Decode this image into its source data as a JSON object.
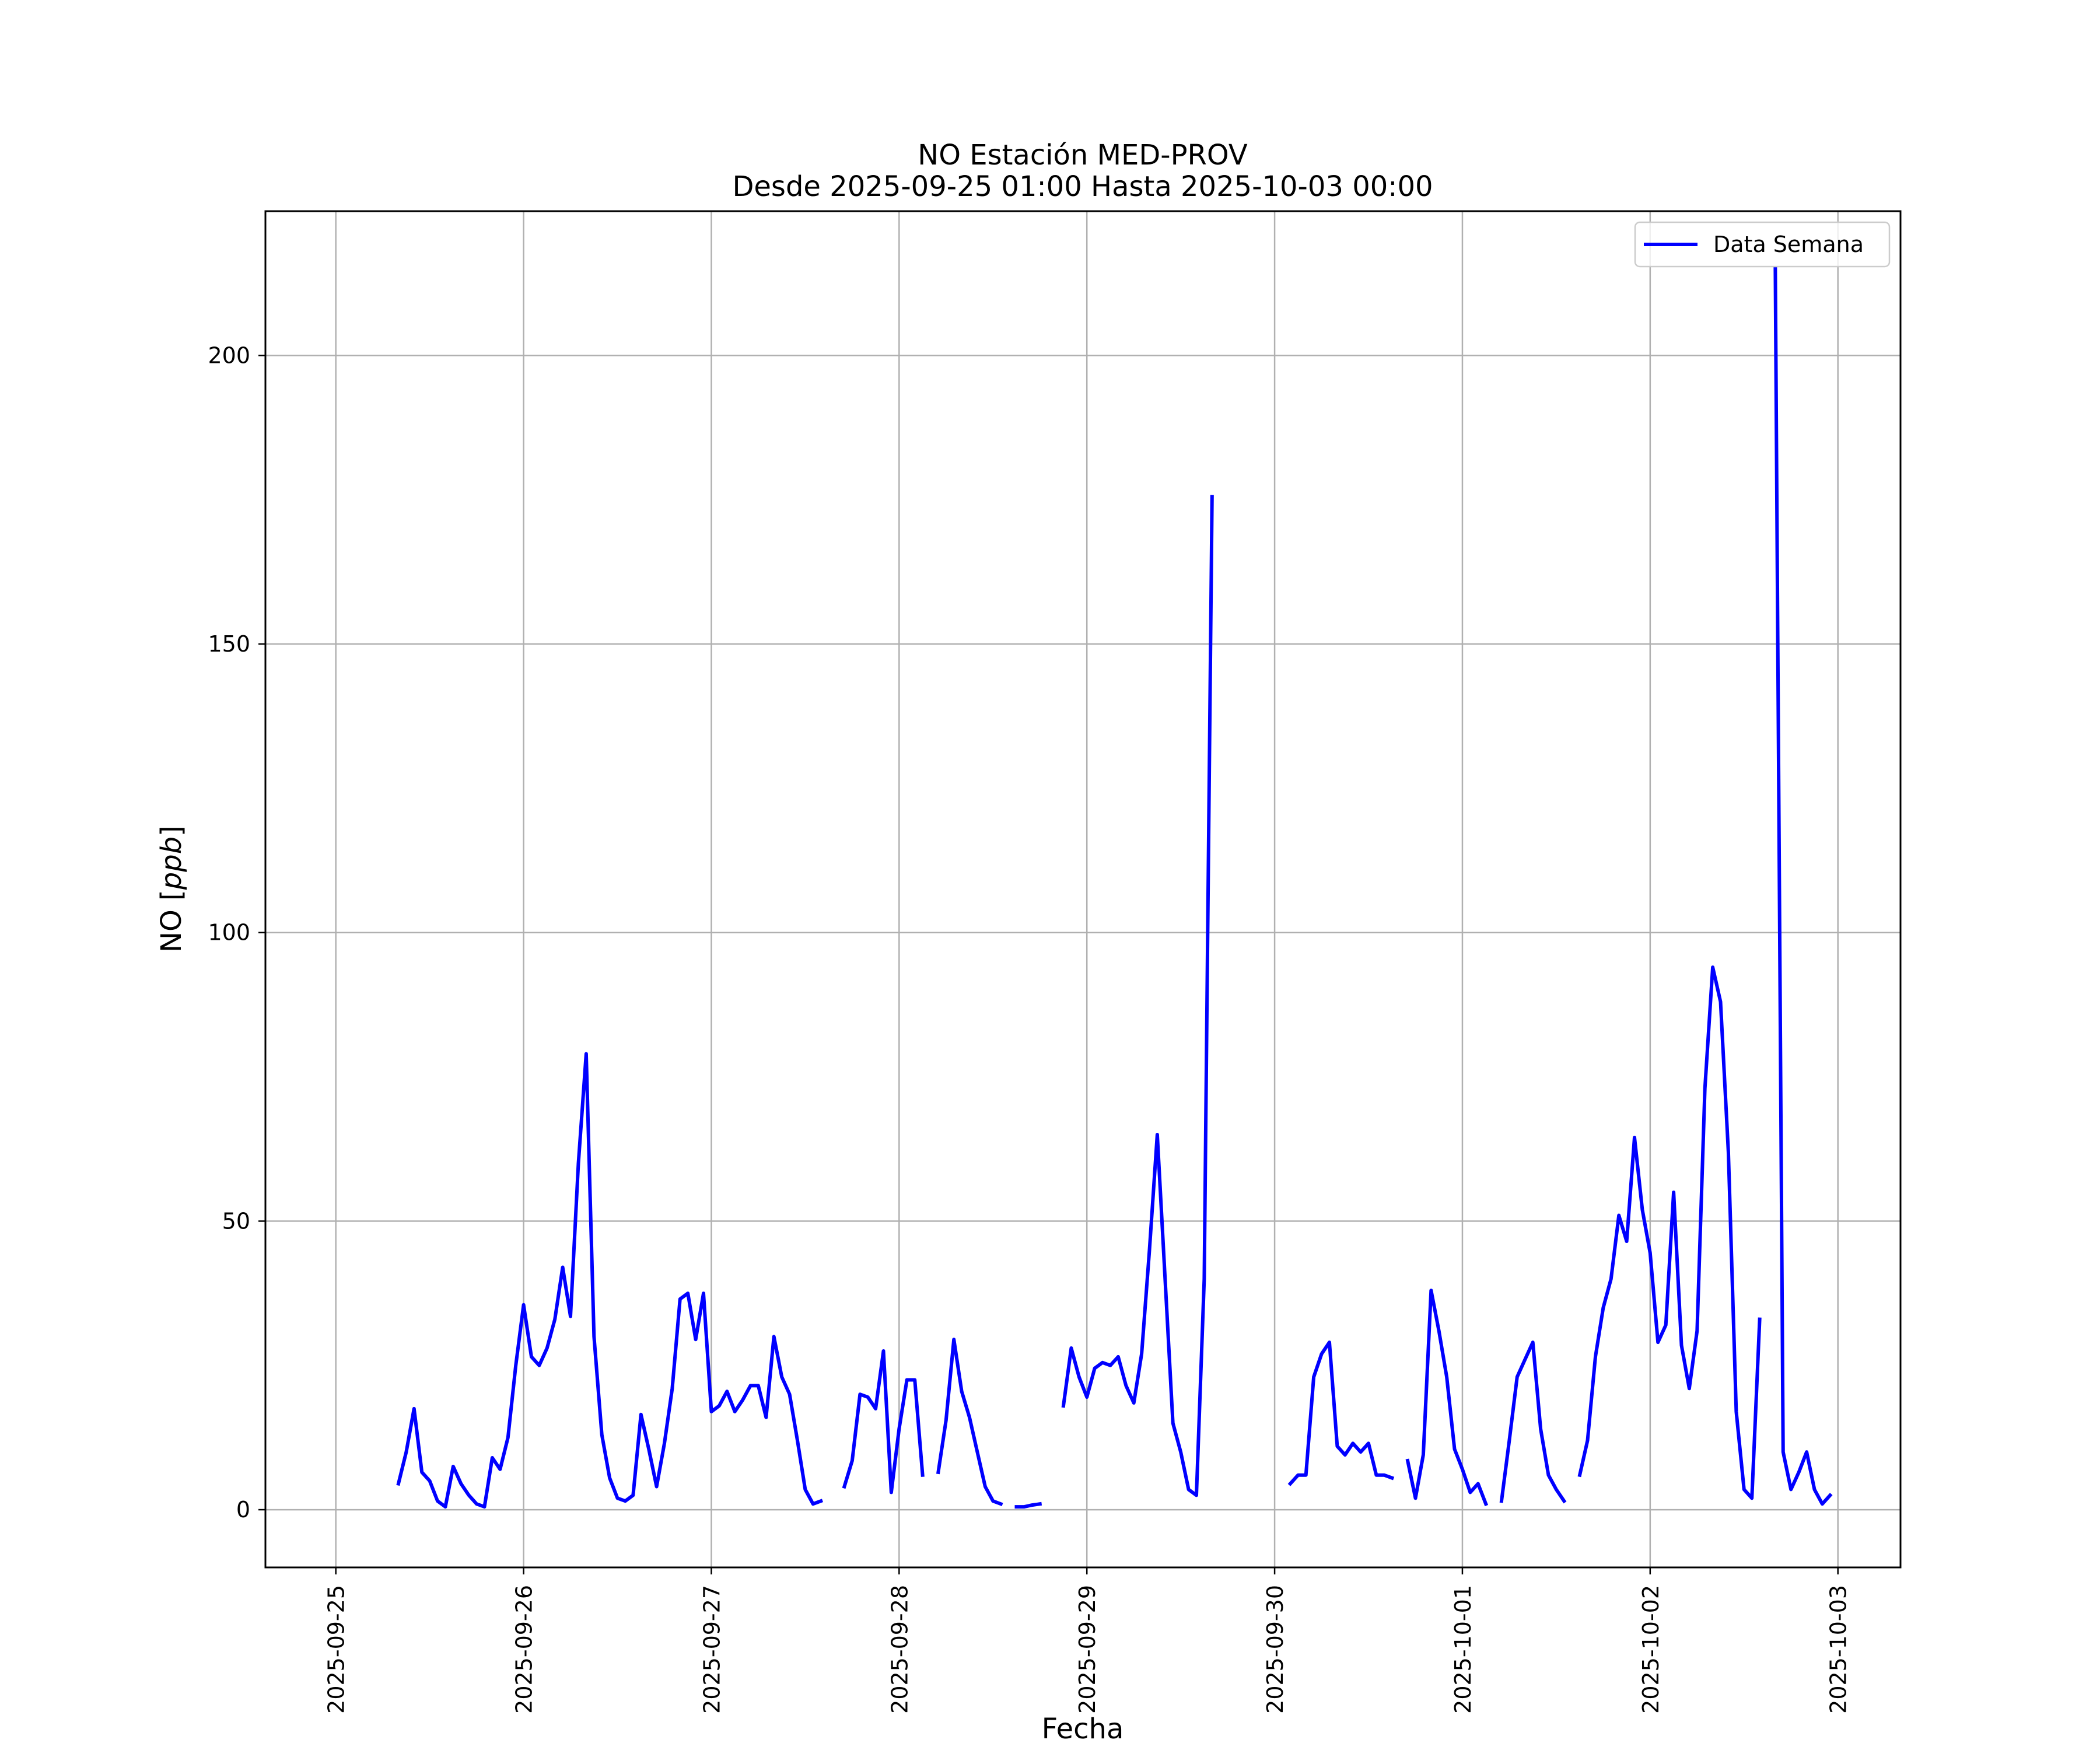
{
  "chart_data": {
    "type": "line",
    "title_line1": "NO Estación MED-PROV",
    "title_line2": "Desde 2025-09-25 01:00 Hasta 2025-10-03 00:00",
    "xlabel": "Fecha",
    "ylabel_prefix": "NO [",
    "ylabel_unit": "ppb",
    "ylabel_suffix": "]",
    "xlim": [
      "2025-09-24 15:00",
      "2025-10-03 08:00"
    ],
    "ylim": [
      -10,
      225
    ],
    "grid": true,
    "legend_position": "top-right",
    "x_ticks": [
      "2025-09-25",
      "2025-09-26",
      "2025-09-27",
      "2025-09-28",
      "2025-09-29",
      "2025-09-30",
      "2025-10-01",
      "2025-10-02",
      "2025-10-03"
    ],
    "y_ticks": [
      0,
      50,
      100,
      150,
      200
    ],
    "series": [
      {
        "name": "Data Semana",
        "color": "#0000ff",
        "segments": [
          {
            "start": "2025-09-25 08:00",
            "values": [
              4.5,
              10,
              17.5,
              6.5,
              5,
              1.5,
              0.5,
              7.5,
              4.5,
              2.5,
              1,
              0.5,
              9,
              7,
              12.5,
              25,
              35.5,
              26.5,
              25,
              28,
              33,
              42,
              33.5,
              60,
              79,
              30,
              13,
              5.5,
              2,
              1.5,
              2.5,
              16.5,
              10.5,
              4,
              11.5,
              21,
              36.5,
              37.5,
              29.5,
              37.5,
              17,
              18,
              20.5,
              17,
              19,
              21.5,
              21.5,
              16,
              30,
              23,
              20,
              12,
              3.5,
              1,
              1.5
            ]
          },
          {
            "start": "2025-09-27 17:00",
            "values": [
              4,
              8.5,
              20,
              19.5,
              17.5,
              27.5,
              3,
              14,
              22.5,
              22.5,
              6
            ]
          },
          {
            "start": "2025-09-28 05:00",
            "values": [
              6.5,
              15.5,
              29.5,
              20.5,
              16,
              10,
              4,
              1.5,
              1
            ]
          },
          {
            "start": "2025-09-28 15:00",
            "values": [
              0.5,
              0.5,
              0.8,
              1
            ]
          },
          {
            "start": "2025-09-28 21:00",
            "values": [
              18,
              28,
              23,
              19.5,
              24.5,
              25.5,
              25,
              26.5,
              21.5,
              18.5,
              27,
              45,
              65,
              40,
              15,
              10,
              3.5,
              2.5,
              40,
              175.5
            ]
          },
          {
            "start": "2025-09-30 02:00",
            "values": [
              4.5,
              6,
              6,
              23,
              27,
              29,
              11,
              9.5,
              11.5,
              10,
              11.5,
              6,
              6,
              5.5
            ]
          },
          {
            "start": "2025-09-30 17:00",
            "values": [
              8.5,
              2,
              9.5,
              38,
              31,
              23,
              10.5,
              7,
              3,
              4.5,
              1
            ]
          },
          {
            "start": "2025-10-01 05:00",
            "values": [
              1.5,
              12,
              23,
              26,
              29,
              14,
              6,
              3.5,
              1.5
            ]
          },
          {
            "start": "2025-10-01 15:00",
            "values": [
              6,
              12,
              26.5,
              35,
              40,
              51,
              46.5,
              64.5,
              52,
              44.5,
              29,
              32,
              55,
              28.5,
              21,
              31,
              73,
              94,
              88,
              62,
              17,
              3.5,
              2,
              33
            ]
          },
          {
            "start": "2025-10-02 16:00",
            "values": [
              215,
              10,
              3.5,
              6.5,
              10,
              3.5,
              1,
              2.5
            ]
          }
        ]
      }
    ]
  }
}
